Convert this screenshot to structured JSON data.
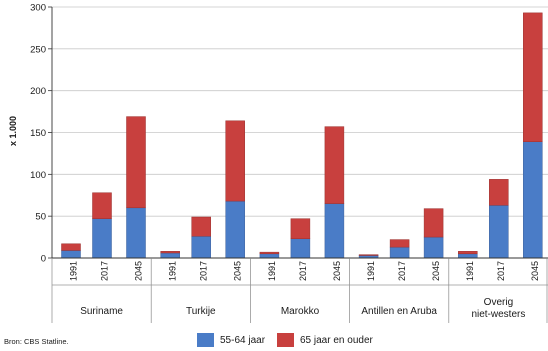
{
  "chart_data": {
    "type": "bar",
    "stacked": true,
    "ylabel": "x 1.000",
    "ylim": [
      0,
      300
    ],
    "yticks": [
      0,
      50,
      100,
      150,
      200,
      250,
      300
    ],
    "groups": [
      {
        "name": "Suriname",
        "years": [
          "1991",
          "2017",
          "2045"
        ]
      },
      {
        "name": "Turkije",
        "years": [
          "1991",
          "2017",
          "2045"
        ]
      },
      {
        "name": "Marokko",
        "years": [
          "1991",
          "2017",
          "2045"
        ]
      },
      {
        "name": "Antillen en Aruba",
        "years": [
          "1991",
          "2017",
          "2045"
        ]
      },
      {
        "name": "Overig niet-westers",
        "years": [
          "1991",
          "2017",
          "2045"
        ]
      }
    ],
    "series": [
      {
        "name": "55-64 jaar",
        "color": "#4a7cc7",
        "values": [
          9,
          47,
          60,
          6,
          26,
          68,
          5,
          23,
          65,
          3,
          13,
          25,
          5,
          63,
          139
        ]
      },
      {
        "name": "65 jaar en ouder",
        "color": "#c8403e",
        "values": [
          8,
          31,
          109,
          2,
          23,
          96,
          2,
          24,
          92,
          1,
          9,
          34,
          3,
          31,
          154
        ]
      }
    ],
    "source": "Bron: CBS Statline."
  }
}
